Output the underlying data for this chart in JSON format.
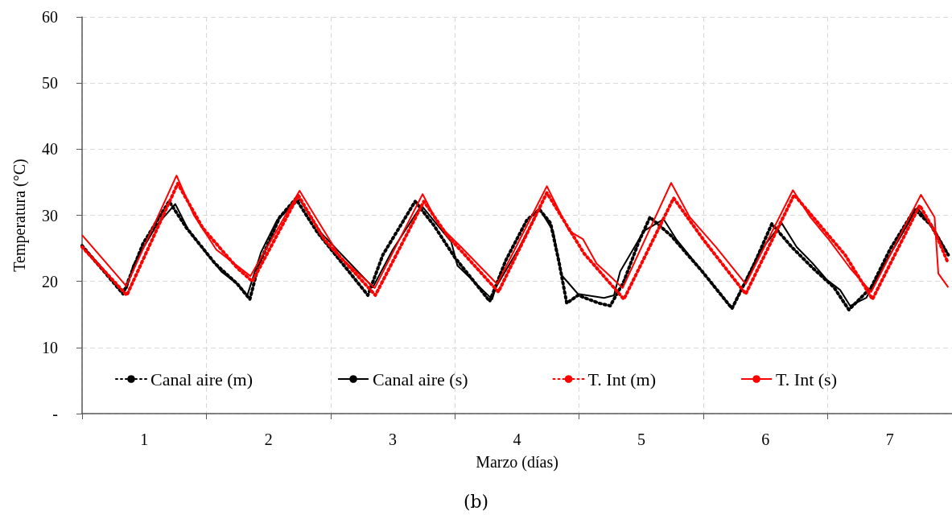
{
  "chart_data": {
    "type": "line",
    "xlabel": "Marzo (días)",
    "ylabel": "Temperatura (°C)",
    "annotations": [
      "(b)"
    ],
    "xlim": [
      0,
      7
    ],
    "xticks": [
      {
        "value": 0,
        "label": null
      },
      {
        "value": 0.5,
        "label": "1"
      },
      {
        "value": 1,
        "label": null
      },
      {
        "value": 1.5,
        "label": "2"
      },
      {
        "value": 2,
        "label": null
      },
      {
        "value": 2.5,
        "label": "3"
      },
      {
        "value": 3,
        "label": null
      },
      {
        "value": 3.5,
        "label": "4"
      },
      {
        "value": 4,
        "label": null
      },
      {
        "value": 4.5,
        "label": "5"
      },
      {
        "value": 5,
        "label": null
      },
      {
        "value": 5.5,
        "label": "6"
      },
      {
        "value": 6,
        "label": null
      },
      {
        "value": 6.5,
        "label": "7"
      },
      {
        "value": 7,
        "label": null
      }
    ],
    "ylim": [
      0,
      60
    ],
    "yticks": [
      {
        "value": 0,
        "label": "-"
      },
      10,
      20,
      30,
      40,
      50,
      60
    ],
    "grid": true,
    "legend": "bottom",
    "marker": "none",
    "series": [
      {
        "name": "Canal aire (m)",
        "color": "#000000",
        "line_style": "dotted",
        "x": [
          0,
          0.33,
          0.49,
          0.7,
          0.84,
          1.07,
          1.25,
          1.35,
          1.42,
          1.59,
          1.72,
          1.89,
          2.3,
          2.42,
          2.68,
          2.83,
          3.0,
          3.28,
          3.41,
          3.58,
          3.68,
          3.77,
          3.84,
          3.9,
          3.99,
          4.16,
          4.25,
          4.36,
          4.48,
          4.57,
          4.74,
          4.99,
          5.23,
          5.41,
          5.55,
          5.71,
          5.88,
          6.05,
          6.17,
          6.35,
          6.5,
          6.7,
          6.83,
          6.97
        ],
        "values": [
          25.4,
          18.1,
          25.7,
          32.1,
          28.1,
          22.7,
          19.6,
          17.3,
          22.4,
          29.7,
          32.5,
          27.5,
          17.9,
          24.0,
          32.1,
          28.5,
          23.6,
          17.0,
          23.2,
          29.3,
          30.9,
          28.8,
          22.7,
          16.7,
          17.9,
          16.7,
          16.3,
          20.0,
          26.0,
          29.7,
          26.9,
          21.5,
          15.9,
          22.7,
          28.7,
          25.2,
          22.0,
          19.1,
          15.7,
          19.1,
          24.8,
          30.9,
          28.5,
          24.0
        ]
      },
      {
        "name": "Canal aire (s)",
        "color": "#000000",
        "line_style": "solid",
        "x": [
          0,
          0.32,
          0.36,
          0.41,
          0.6,
          0.75,
          0.86,
          1.12,
          1.25,
          1.33,
          1.44,
          1.57,
          1.75,
          1.92,
          2.34,
          2.5,
          2.73,
          2.86,
          2.97,
          3.02,
          3.3,
          3.33,
          3.52,
          3.68,
          3.79,
          3.86,
          3.99,
          4.2,
          4.28,
          4.33,
          4.52,
          4.68,
          4.78,
          5.02,
          5.23,
          5.45,
          5.63,
          5.75,
          5.88,
          5.99,
          6.1,
          6.18,
          6.31,
          6.46,
          6.72,
          6.85,
          6.97
        ],
        "values": [
          25.4,
          18.7,
          19.0,
          22.4,
          28.5,
          31.7,
          27.6,
          21.5,
          19.6,
          17.9,
          24.4,
          29.3,
          32.4,
          27.4,
          19.1,
          24.8,
          31.5,
          28.5,
          26.0,
          22.4,
          17.3,
          19.1,
          25.2,
          31.0,
          27.6,
          20.9,
          18.1,
          17.5,
          17.9,
          21.5,
          27.6,
          29.4,
          26.4,
          20.8,
          15.9,
          24.4,
          28.8,
          25.2,
          22.7,
          20.3,
          18.7,
          16.3,
          17.5,
          22.7,
          31.1,
          28.1,
          24.0
        ]
      },
      {
        "name": "T. Int (m)",
        "color": "#ff0000",
        "line_style": "dotted",
        "x": [
          0,
          0.36,
          0.77,
          0.97,
          1.25,
          1.37,
          1.74,
          1.95,
          2.36,
          2.75,
          2.94,
          3.35,
          3.74,
          4.04,
          4.36,
          4.76,
          5.0,
          5.34,
          5.73,
          6.14,
          6.36,
          6.74,
          6.86,
          6.97
        ],
        "values": [
          25.2,
          17.9,
          34.8,
          28.1,
          22.0,
          20.0,
          33.0,
          26.3,
          17.9,
          32.1,
          26.9,
          18.4,
          33.4,
          24.2,
          17.3,
          32.6,
          26.3,
          18.1,
          33.1,
          24.0,
          17.3,
          31.5,
          27.6,
          22.7
        ]
      },
      {
        "name": "T. Int (s)",
        "color": "#ff0000",
        "line_style": "solid",
        "x": [
          0,
          0.355,
          0.76,
          0.9,
          1.08,
          1.355,
          1.75,
          1.88,
          2.08,
          2.355,
          2.74,
          2.87,
          3.05,
          3.34,
          3.74,
          3.92,
          4.03,
          4.14,
          4.35,
          4.74,
          4.89,
          5.1,
          5.34,
          5.72,
          5.86,
          6.01,
          6.18,
          6.35,
          6.75,
          6.86,
          6.89,
          6.97
        ],
        "values": [
          27.0,
          19.3,
          36.0,
          30.0,
          24.8,
          20.8,
          33.7,
          29.7,
          23.6,
          19.0,
          33.2,
          28.5,
          25.2,
          19.6,
          34.4,
          27.6,
          26.4,
          22.7,
          19.0,
          34.9,
          29.7,
          25.2,
          19.6,
          33.8,
          29.7,
          26.3,
          22.0,
          18.4,
          33.1,
          29.7,
          21.2,
          19.1
        ]
      }
    ]
  }
}
